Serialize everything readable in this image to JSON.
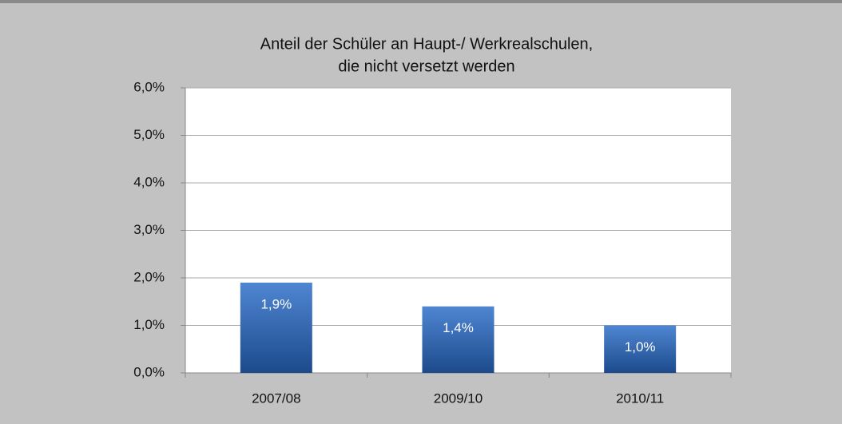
{
  "chart_data": {
    "type": "bar",
    "title": [
      "Anteil der Schüler an Haupt-/ Werkrealschulen,",
      "die nicht versetzt werden"
    ],
    "categories": [
      "2007/08",
      "2009/10",
      "2010/11"
    ],
    "values": [
      1.9,
      1.4,
      1.0
    ],
    "value_labels": [
      "1,9%",
      "1,4%",
      "1,0%"
    ],
    "color": "#3366b0",
    "ylim": [
      0,
      6
    ],
    "yticks": [
      {
        "value": 0,
        "label": "0,0%"
      },
      {
        "value": 1,
        "label": "1,0%"
      },
      {
        "value": 2,
        "label": "2,0%"
      },
      {
        "value": 3,
        "label": "3,0%"
      },
      {
        "value": 4,
        "label": "4,0%"
      },
      {
        "value": 5,
        "label": "5,0%"
      },
      {
        "value": 6,
        "label": "6,0%"
      }
    ],
    "grid": true
  }
}
